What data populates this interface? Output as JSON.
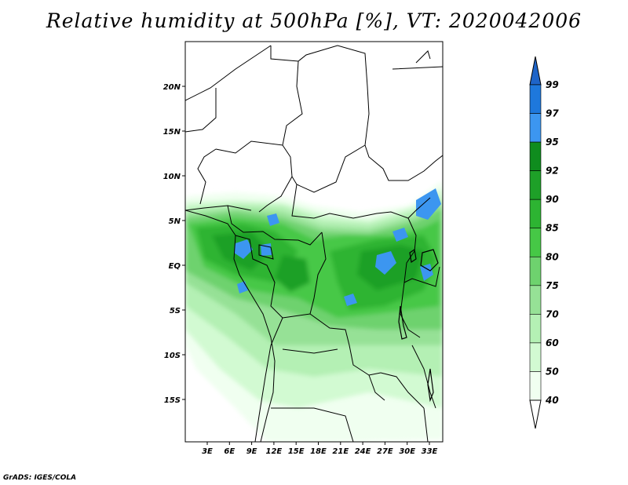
{
  "title": "Relative humidity at 500hPa [%], VT: 2020042006",
  "credit": "GrADS: IGES/COLA",
  "lat_labels": [
    "20N",
    "15N",
    "10N",
    "5N",
    "EQ",
    "5S",
    "10S",
    "15S"
  ],
  "lon_labels": [
    "3E",
    "6E",
    "9E",
    "12E",
    "15E",
    "18E",
    "21E",
    "24E",
    "27E",
    "30E",
    "33E"
  ],
  "colorbar": {
    "labels": [
      "99",
      "97",
      "95",
      "92",
      "90",
      "85",
      "80",
      "75",
      "70",
      "60",
      "50",
      "40"
    ],
    "colors": [
      "#1e64c8",
      "#1e78dc",
      "#3c96f0",
      "#0f8c1e",
      "#1ea028",
      "#2db432",
      "#46c846",
      "#6ed26e",
      "#96e196",
      "#b4f0b4",
      "#d2fad2",
      "#f0fff0"
    ]
  }
}
